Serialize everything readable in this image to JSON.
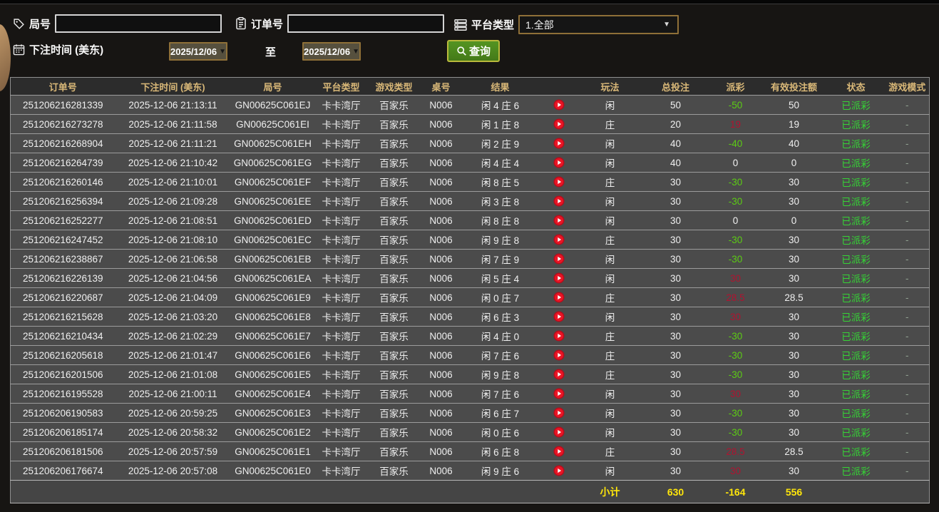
{
  "filters": {
    "game_no_label": "局号",
    "game_no_value": "",
    "order_no_label": "订单号",
    "order_no_value": "",
    "platform_label": "平台类型",
    "platform_value": "1.全部",
    "bet_time_label": "下注时间 (美东)",
    "date_from": "2025/12/06",
    "to_label": "至",
    "date_to": "2025/12/06",
    "query_label": "查询"
  },
  "colors": {
    "header_gold": "#d9b878",
    "payout_negative_green": "#5ccc14",
    "payout_positive_red": "#b01330",
    "status_green": "#35d435",
    "subtotal_yellow": "#ffe60a",
    "query_button_green": "#4c8a1e",
    "accent_border_tan": "#8f7038"
  },
  "table": {
    "headers": [
      "订单号",
      "下注时间 (美东)",
      "局号",
      "平台类型",
      "游戏类型",
      "桌号",
      "结果",
      "",
      "玩法",
      "总投注",
      "派彩",
      "有效投注额",
      "状态",
      "游戏模式"
    ],
    "rows": [
      {
        "order": "251206216281339",
        "time": "2025-12-06 21:13:11",
        "round": "GN00625C061EJ",
        "platform": "卡卡湾厅",
        "game_type": "百家乐",
        "table_no": "N006",
        "result": "闲 4 庄 6",
        "play": "闲",
        "total_bet": "50",
        "payout": "-50",
        "payout_tone": "neg",
        "valid_bet": "50",
        "status": "已派彩",
        "mode": "-"
      },
      {
        "order": "251206216273278",
        "time": "2025-12-06 21:11:58",
        "round": "GN00625C061EI",
        "platform": "卡卡湾厅",
        "game_type": "百家乐",
        "table_no": "N006",
        "result": "闲 1 庄 8",
        "play": "庄",
        "total_bet": "20",
        "payout": "19",
        "payout_tone": "pos",
        "valid_bet": "19",
        "status": "已派彩",
        "mode": "-"
      },
      {
        "order": "251206216268904",
        "time": "2025-12-06 21:11:21",
        "round": "GN00625C061EH",
        "platform": "卡卡湾厅",
        "game_type": "百家乐",
        "table_no": "N006",
        "result": "闲 2 庄 9",
        "play": "闲",
        "total_bet": "40",
        "payout": "-40",
        "payout_tone": "neg",
        "valid_bet": "40",
        "status": "已派彩",
        "mode": "-"
      },
      {
        "order": "251206216264739",
        "time": "2025-12-06 21:10:42",
        "round": "GN00625C061EG",
        "platform": "卡卡湾厅",
        "game_type": "百家乐",
        "table_no": "N006",
        "result": "闲 4 庄 4",
        "play": "闲",
        "total_bet": "40",
        "payout": "0",
        "payout_tone": "zero",
        "valid_bet": "0",
        "status": "已派彩",
        "mode": "-"
      },
      {
        "order": "251206216260146",
        "time": "2025-12-06 21:10:01",
        "round": "GN00625C061EF",
        "platform": "卡卡湾厅",
        "game_type": "百家乐",
        "table_no": "N006",
        "result": "闲 8 庄 5",
        "play": "庄",
        "total_bet": "30",
        "payout": "-30",
        "payout_tone": "neg",
        "valid_bet": "30",
        "status": "已派彩",
        "mode": "-"
      },
      {
        "order": "251206216256394",
        "time": "2025-12-06 21:09:28",
        "round": "GN00625C061EE",
        "platform": "卡卡湾厅",
        "game_type": "百家乐",
        "table_no": "N006",
        "result": "闲 3 庄 8",
        "play": "闲",
        "total_bet": "30",
        "payout": "-30",
        "payout_tone": "neg",
        "valid_bet": "30",
        "status": "已派彩",
        "mode": "-"
      },
      {
        "order": "251206216252277",
        "time": "2025-12-06 21:08:51",
        "round": "GN00625C061ED",
        "platform": "卡卡湾厅",
        "game_type": "百家乐",
        "table_no": "N006",
        "result": "闲 8 庄 8",
        "play": "闲",
        "total_bet": "30",
        "payout": "0",
        "payout_tone": "zero",
        "valid_bet": "0",
        "status": "已派彩",
        "mode": "-"
      },
      {
        "order": "251206216247452",
        "time": "2025-12-06 21:08:10",
        "round": "GN00625C061EC",
        "platform": "卡卡湾厅",
        "game_type": "百家乐",
        "table_no": "N006",
        "result": "闲 9 庄 8",
        "play": "庄",
        "total_bet": "30",
        "payout": "-30",
        "payout_tone": "neg",
        "valid_bet": "30",
        "status": "已派彩",
        "mode": "-"
      },
      {
        "order": "251206216238867",
        "time": "2025-12-06 21:06:58",
        "round": "GN00625C061EB",
        "platform": "卡卡湾厅",
        "game_type": "百家乐",
        "table_no": "N006",
        "result": "闲 7 庄 9",
        "play": "闲",
        "total_bet": "30",
        "payout": "-30",
        "payout_tone": "neg",
        "valid_bet": "30",
        "status": "已派彩",
        "mode": "-"
      },
      {
        "order": "251206216226139",
        "time": "2025-12-06 21:04:56",
        "round": "GN00625C061EA",
        "platform": "卡卡湾厅",
        "game_type": "百家乐",
        "table_no": "N006",
        "result": "闲 5 庄 4",
        "play": "闲",
        "total_bet": "30",
        "payout": "30",
        "payout_tone": "pos",
        "valid_bet": "30",
        "status": "已派彩",
        "mode": "-"
      },
      {
        "order": "251206216220687",
        "time": "2025-12-06 21:04:09",
        "round": "GN00625C061E9",
        "platform": "卡卡湾厅",
        "game_type": "百家乐",
        "table_no": "N006",
        "result": "闲 0 庄 7",
        "play": "庄",
        "total_bet": "30",
        "payout": "28.5",
        "payout_tone": "pos",
        "valid_bet": "28.5",
        "status": "已派彩",
        "mode": "-"
      },
      {
        "order": "251206216215628",
        "time": "2025-12-06 21:03:20",
        "round": "GN00625C061E8",
        "platform": "卡卡湾厅",
        "game_type": "百家乐",
        "table_no": "N006",
        "result": "闲 6 庄 3",
        "play": "闲",
        "total_bet": "30",
        "payout": "30",
        "payout_tone": "pos",
        "valid_bet": "30",
        "status": "已派彩",
        "mode": "-"
      },
      {
        "order": "251206216210434",
        "time": "2025-12-06 21:02:29",
        "round": "GN00625C061E7",
        "platform": "卡卡湾厅",
        "game_type": "百家乐",
        "table_no": "N006",
        "result": "闲 4 庄 0",
        "play": "庄",
        "total_bet": "30",
        "payout": "-30",
        "payout_tone": "neg",
        "valid_bet": "30",
        "status": "已派彩",
        "mode": "-"
      },
      {
        "order": "251206216205618",
        "time": "2025-12-06 21:01:47",
        "round": "GN00625C061E6",
        "platform": "卡卡湾厅",
        "game_type": "百家乐",
        "table_no": "N006",
        "result": "闲 7 庄 6",
        "play": "庄",
        "total_bet": "30",
        "payout": "-30",
        "payout_tone": "neg",
        "valid_bet": "30",
        "status": "已派彩",
        "mode": "-"
      },
      {
        "order": "251206216201506",
        "time": "2025-12-06 21:01:08",
        "round": "GN00625C061E5",
        "platform": "卡卡湾厅",
        "game_type": "百家乐",
        "table_no": "N006",
        "result": "闲 9 庄 8",
        "play": "庄",
        "total_bet": "30",
        "payout": "-30",
        "payout_tone": "neg",
        "valid_bet": "30",
        "status": "已派彩",
        "mode": "-"
      },
      {
        "order": "251206216195528",
        "time": "2025-12-06 21:00:11",
        "round": "GN00625C061E4",
        "platform": "卡卡湾厅",
        "game_type": "百家乐",
        "table_no": "N006",
        "result": "闲 7 庄 6",
        "play": "闲",
        "total_bet": "30",
        "payout": "30",
        "payout_tone": "pos",
        "valid_bet": "30",
        "status": "已派彩",
        "mode": "-"
      },
      {
        "order": "251206206190583",
        "time": "2025-12-06 20:59:25",
        "round": "GN00625C061E3",
        "platform": "卡卡湾厅",
        "game_type": "百家乐",
        "table_no": "N006",
        "result": "闲 6 庄 7",
        "play": "闲",
        "total_bet": "30",
        "payout": "-30",
        "payout_tone": "neg",
        "valid_bet": "30",
        "status": "已派彩",
        "mode": "-"
      },
      {
        "order": "251206206185174",
        "time": "2025-12-06 20:58:32",
        "round": "GN00625C061E2",
        "platform": "卡卡湾厅",
        "game_type": "百家乐",
        "table_no": "N006",
        "result": "闲 0 庄 6",
        "play": "闲",
        "total_bet": "30",
        "payout": "-30",
        "payout_tone": "neg",
        "valid_bet": "30",
        "status": "已派彩",
        "mode": "-"
      },
      {
        "order": "251206206181506",
        "time": "2025-12-06 20:57:59",
        "round": "GN00625C061E1",
        "platform": "卡卡湾厅",
        "game_type": "百家乐",
        "table_no": "N006",
        "result": "闲 6 庄 8",
        "play": "庄",
        "total_bet": "30",
        "payout": "28.5",
        "payout_tone": "pos",
        "valid_bet": "28.5",
        "status": "已派彩",
        "mode": "-"
      },
      {
        "order": "251206206176674",
        "time": "2025-12-06 20:57:08",
        "round": "GN00625C061E0",
        "platform": "卡卡湾厅",
        "game_type": "百家乐",
        "table_no": "N006",
        "result": "闲 9 庄 6",
        "play": "闲",
        "total_bet": "30",
        "payout": "30",
        "payout_tone": "pos",
        "valid_bet": "30",
        "status": "已派彩",
        "mode": "-"
      }
    ],
    "subtotal": {
      "label": "小计",
      "total_bet": "630",
      "payout": "-164",
      "valid_bet": "556"
    }
  }
}
